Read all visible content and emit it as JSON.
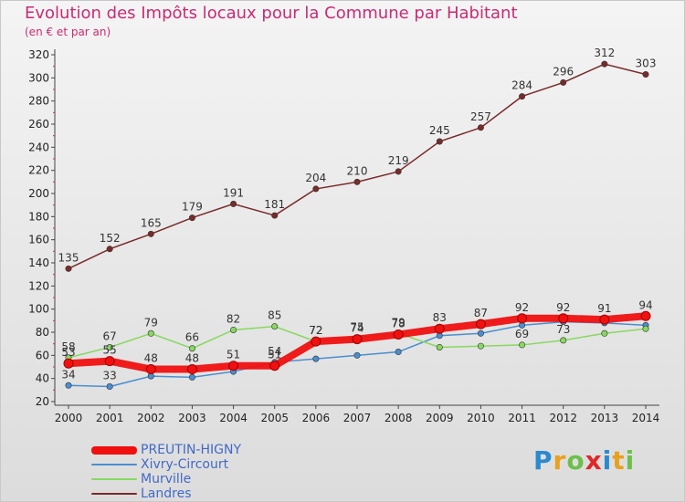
{
  "title": "Evolution des Impôts locaux pour la Commune par Habitant",
  "subtitle": "(en € et par an)",
  "logo": {
    "letters": [
      "P",
      "r",
      "o",
      "x",
      "i",
      "t",
      "i"
    ],
    "colors": [
      "#2a8ad0",
      "#e8a020",
      "#6cc04a",
      "#e02828",
      "#2a8ad0",
      "#e8a020",
      "#6cc04a"
    ]
  },
  "chart_data": {
    "type": "line",
    "title": "Evolution des Impôts locaux pour la Commune par Habitant",
    "subtitle": "(en € et par an)",
    "xlabel": "",
    "ylabel": "",
    "x": [
      "2000",
      "2001",
      "2002",
      "2003",
      "2004",
      "2005",
      "2006",
      "2007",
      "2008",
      "2009",
      "2010",
      "2011",
      "2012",
      "2013",
      "2014"
    ],
    "ylim": [
      20,
      320
    ],
    "yticks": [
      20,
      40,
      60,
      80,
      100,
      120,
      140,
      160,
      180,
      200,
      220,
      240,
      260,
      280,
      300,
      320
    ],
    "grid": false,
    "legend": "bottom-left",
    "series": [
      {
        "name": "Landres",
        "color": "#7a2a2a",
        "values": [
          135,
          152,
          165,
          179,
          191,
          181,
          204,
          210,
          219,
          245,
          257,
          284,
          296,
          312,
          303
        ],
        "show_labels": [
          true,
          true,
          true,
          true,
          true,
          true,
          true,
          true,
          true,
          true,
          true,
          true,
          true,
          true,
          true
        ]
      },
      {
        "name": "Xivry-Circourt",
        "color": "#4a8ed0",
        "values": [
          34,
          33,
          42,
          41,
          46,
          54,
          57,
          60,
          63,
          77,
          79,
          86,
          89,
          88,
          86
        ],
        "show_labels": [
          true,
          true,
          false,
          false,
          false,
          true,
          false,
          false,
          false,
          false,
          false,
          false,
          false,
          false,
          false
        ]
      },
      {
        "name": "Murville",
        "color": "#88d860",
        "values": [
          58,
          67,
          79,
          66,
          82,
          85,
          72,
          75,
          79,
          67,
          68,
          69,
          73,
          79,
          83
        ],
        "show_labels": [
          true,
          true,
          true,
          true,
          true,
          true,
          true,
          true,
          true,
          false,
          false,
          true,
          true,
          false,
          false
        ]
      },
      {
        "name": "PREUTIN-HIGNY",
        "color": "#f01010",
        "values": [
          53,
          55,
          48,
          48,
          51,
          51,
          72,
          74,
          78,
          83,
          87,
          92,
          92,
          91,
          94
        ],
        "show_labels": [
          true,
          true,
          true,
          true,
          true,
          true,
          true,
          true,
          true,
          true,
          true,
          true,
          true,
          true,
          true
        ]
      }
    ],
    "legend_order": [
      "PREUTIN-HIGNY",
      "Xivry-Circourt",
      "Murville",
      "Landres"
    ]
  }
}
